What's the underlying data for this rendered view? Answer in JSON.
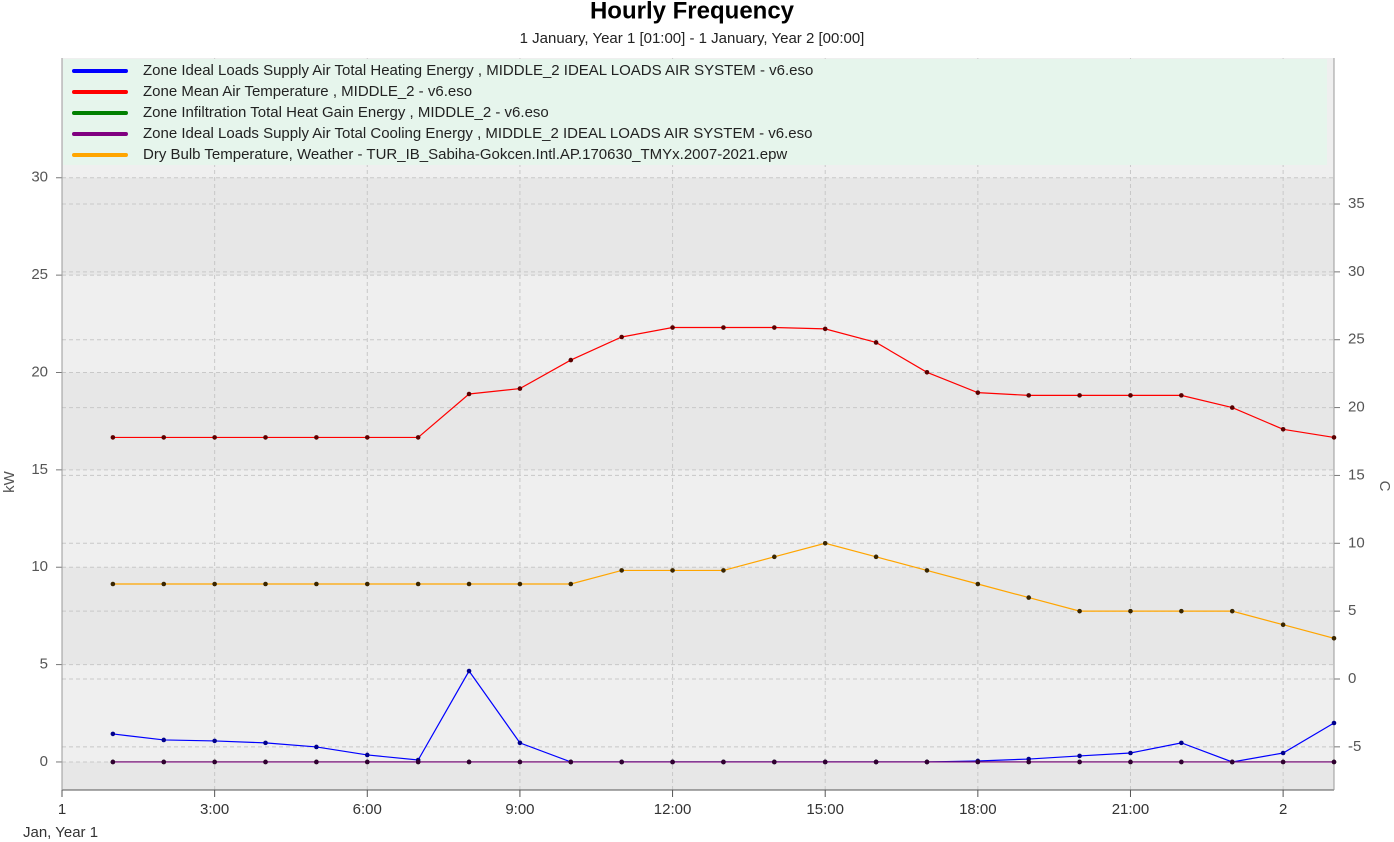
{
  "chart_data": {
    "type": "line",
    "title": "Hourly Frequency",
    "subtitle": "1 January, Year 1 [01:00] - 1 January, Year 2 [00:00]",
    "x_label": "Jan, Year 1",
    "y_label": "kW",
    "y2_label": "C",
    "x": [
      1,
      2,
      3,
      4,
      5,
      6,
      7,
      8,
      9,
      10,
      11,
      12,
      13,
      14,
      15,
      16,
      17,
      18,
      19,
      20,
      21,
      22,
      23,
      24,
      25
    ],
    "xlim": [
      0,
      25
    ],
    "xticks": [
      {
        "value": 0,
        "label": "1"
      },
      {
        "value": 3,
        "label": "3:00"
      },
      {
        "value": 6,
        "label": "6:00"
      },
      {
        "value": 9,
        "label": "9:00"
      },
      {
        "value": 12,
        "label": "12:00"
      },
      {
        "value": 15,
        "label": "15:00"
      },
      {
        "value": 18,
        "label": "18:00"
      },
      {
        "value": 21,
        "label": "21:00"
      },
      {
        "value": 24,
        "label": "2"
      }
    ],
    "ylim": [
      -1.44,
      36.15
    ],
    "yticks": [
      0,
      5,
      10,
      15,
      20,
      25,
      30
    ],
    "y2lim": [
      -8.18,
      45.76
    ],
    "y2ticks": [
      -5,
      0,
      5,
      10,
      15,
      20,
      25,
      30,
      35
    ],
    "grid": true,
    "series": [
      {
        "name": "Zone Ideal Loads Supply Air Total Heating Energy , MIDDLE_2 IDEAL LOADS AIR SYSTEM - v6.eso",
        "color": "#0000ff",
        "marker_color": "#00008b",
        "values": [
          1.44,
          1.13,
          1.08,
          0.98,
          0.77,
          0.36,
          0.1,
          4.67,
          0.98,
          0,
          0,
          0,
          0,
          0,
          0,
          0,
          0,
          0.05,
          0.15,
          0.31,
          0.46,
          0.98,
          0,
          0.46,
          2.0
        ]
      },
      {
        "name": "Zone Mean Air Temperature , MIDDLE_2 - v6.eso",
        "color": "#ff0000",
        "marker_color": "#5a0000",
        "axis": "y2",
        "values": [
          17.8,
          17.8,
          17.8,
          17.8,
          17.8,
          17.8,
          17.8,
          21.0,
          21.4,
          23.5,
          25.2,
          25.9,
          25.9,
          25.9,
          25.8,
          24.8,
          22.6,
          21.1,
          20.9,
          20.9,
          20.9,
          20.9,
          20.0,
          18.4,
          17.8
        ]
      },
      {
        "name": "Zone Infiltration Total Heat Gain Energy , MIDDLE_2 - v6.eso",
        "color": "#008000",
        "marker_color": "#003300",
        "values": [
          0,
          0,
          0,
          0,
          0,
          0,
          0,
          0,
          0,
          0,
          0,
          0,
          0,
          0,
          0,
          0,
          0,
          0,
          0,
          0,
          0,
          0,
          0,
          0,
          0
        ]
      },
      {
        "name": "Zone Ideal Loads Supply Air Total Cooling Energy , MIDDLE_2 IDEAL LOADS AIR SYSTEM - v6.eso",
        "color": "#800080",
        "marker_color": "#300030",
        "values": [
          0,
          0,
          0,
          0,
          0,
          0,
          0,
          0,
          0,
          0,
          0,
          0,
          0,
          0,
          0,
          0,
          0,
          0,
          0,
          0,
          0,
          0,
          0,
          0,
          0
        ]
      },
      {
        "name": "Dry Bulb Temperature, Weather - TUR_IB_Sabiha-Gokcen.Intl.AP.170630_TMYx.2007-2021.epw",
        "color": "#ffa500",
        "marker_color": "#3a2600",
        "axis": "y2",
        "values": [
          7,
          7,
          7,
          7,
          7,
          7,
          7,
          7,
          7,
          7,
          8,
          8,
          8,
          9,
          10,
          9,
          8,
          7,
          6,
          5,
          5,
          5,
          5,
          4,
          3
        ]
      }
    ]
  }
}
